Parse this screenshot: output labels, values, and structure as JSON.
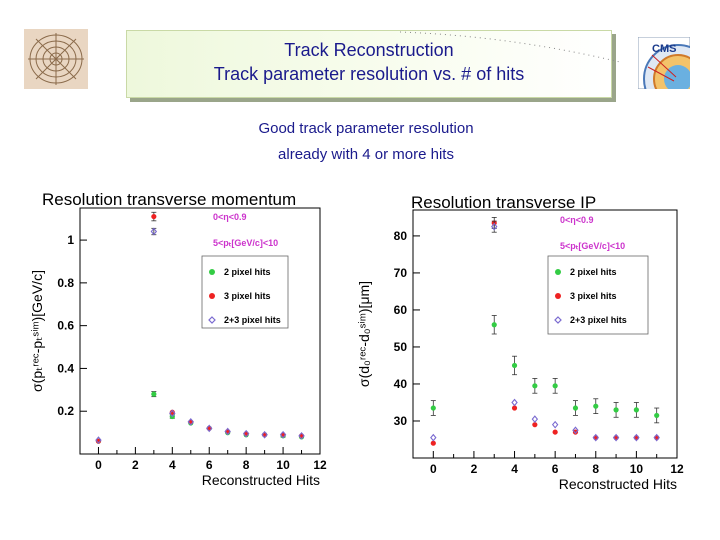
{
  "header": {
    "title_line1": "Track Reconstruction",
    "title_line2": "Track parameter resolution vs. # of hits"
  },
  "subtitle": {
    "line1": "Good track parameter resolution",
    "line2": "already with 4 or more hits"
  },
  "logos": {
    "left": "detector-photo",
    "right": "cms-logo",
    "right_text": "CMS"
  },
  "colors": {
    "title_text": "#1a1a8c",
    "series_2pix": "#33cc44",
    "series_3pix": "#ee2222",
    "series_23pix": "#7a6ad0",
    "cut_text": "#cc33cc"
  },
  "chart_data": [
    {
      "type": "scatter",
      "title": "Resolution transverse momentum",
      "xlabel": "Reconstructed Hits",
      "ylabel": "σ(pₜʳᵉᶜ-pₜˢⁱᵐ)[GeV/c]",
      "xlim": [
        -1,
        12
      ],
      "ylim": [
        0,
        1.15
      ],
      "xticks": [
        0,
        2,
        4,
        6,
        8,
        10,
        12
      ],
      "yticks": [
        0.2,
        0.4,
        0.6,
        0.8,
        1
      ],
      "annotations": [
        "0<η<0.9",
        "5<pₜ[GeV/c]<10"
      ],
      "legend_position": "center-right",
      "series": [
        {
          "name": "2 pixel hits",
          "color": "#33cc44",
          "marker": "circle",
          "x": [
            0,
            3,
            4,
            5,
            6,
            7,
            8,
            9,
            10,
            11
          ],
          "y": [
            0.06,
            0.28,
            0.175,
            0.145,
            0.12,
            0.1,
            0.09,
            0.09,
            0.085,
            0.08
          ],
          "err": [
            0,
            0.012,
            0.008,
            0,
            0,
            0,
            0,
            0,
            0.006,
            0
          ]
        },
        {
          "name": "3 pixel hits",
          "color": "#ee2222",
          "marker": "circle",
          "x": [
            0,
            3,
            4,
            5,
            6,
            7,
            8,
            9,
            10,
            11
          ],
          "y": [
            0.06,
            1.11,
            0.195,
            0.15,
            0.12,
            0.105,
            0.095,
            0.09,
            0.09,
            0.085
          ],
          "err": [
            0,
            0.02,
            0,
            0,
            0,
            0,
            0,
            0,
            0,
            0
          ]
        },
        {
          "name": "2+3 pixel hits",
          "color": "#7a6ad0",
          "marker": "diamond",
          "x": [
            0,
            3,
            4,
            5,
            6,
            7,
            8,
            9,
            10,
            11
          ],
          "y": [
            0.065,
            1.04,
            0.19,
            0.15,
            0.12,
            0.105,
            0.095,
            0.09,
            0.09,
            0.085
          ],
          "err": [
            0,
            0.015,
            0,
            0,
            0,
            0,
            0,
            0,
            0,
            0
          ]
        }
      ]
    },
    {
      "type": "scatter",
      "title": "Resolution transverse IP",
      "xlabel": "Reconstructed Hits",
      "ylabel": "σ(d₀ʳᵉᶜ-d₀ˢⁱᵐ)[μm]",
      "xlim": [
        -1,
        12
      ],
      "ylim": [
        20,
        87
      ],
      "xticks": [
        0,
        2,
        4,
        6,
        8,
        10,
        12
      ],
      "yticks": [
        30,
        40,
        50,
        60,
        70,
        80
      ],
      "annotations": [
        "0<η<0.9",
        "5<pₜ[GeV/c]<10"
      ],
      "legend_position": "top-right",
      "series": [
        {
          "name": "2 pixel hits",
          "color": "#33cc44",
          "marker": "circle",
          "x": [
            0,
            3,
            4,
            5,
            6,
            7,
            8,
            9,
            10,
            11
          ],
          "y": [
            33.5,
            56,
            45,
            39.5,
            39.5,
            33.5,
            34,
            33,
            33,
            31.5
          ],
          "err": [
            2,
            2.5,
            2.5,
            2,
            2,
            2,
            2,
            2,
            2,
            2
          ]
        },
        {
          "name": "3 pixel hits",
          "color": "#ee2222",
          "marker": "circle",
          "x": [
            0,
            3,
            4,
            5,
            6,
            7,
            8,
            9,
            10,
            11
          ],
          "y": [
            24,
            83.5,
            33.5,
            29,
            27,
            27,
            25.5,
            25.5,
            25.5,
            25.5
          ],
          "err": [
            0,
            1.5,
            0,
            0,
            0,
            0,
            0,
            0,
            0,
            0
          ]
        },
        {
          "name": "2+3 pixel hits",
          "color": "#7a6ad0",
          "marker": "diamond",
          "x": [
            0,
            3,
            4,
            5,
            6,
            7,
            8,
            9,
            10,
            11
          ],
          "y": [
            25.5,
            82.5,
            35,
            30.5,
            29,
            27.5,
            25.5,
            25.5,
            25.5,
            25.5
          ],
          "err": [
            0,
            1.5,
            0,
            0,
            0,
            0,
            0,
            0,
            0,
            0
          ]
        }
      ]
    }
  ]
}
